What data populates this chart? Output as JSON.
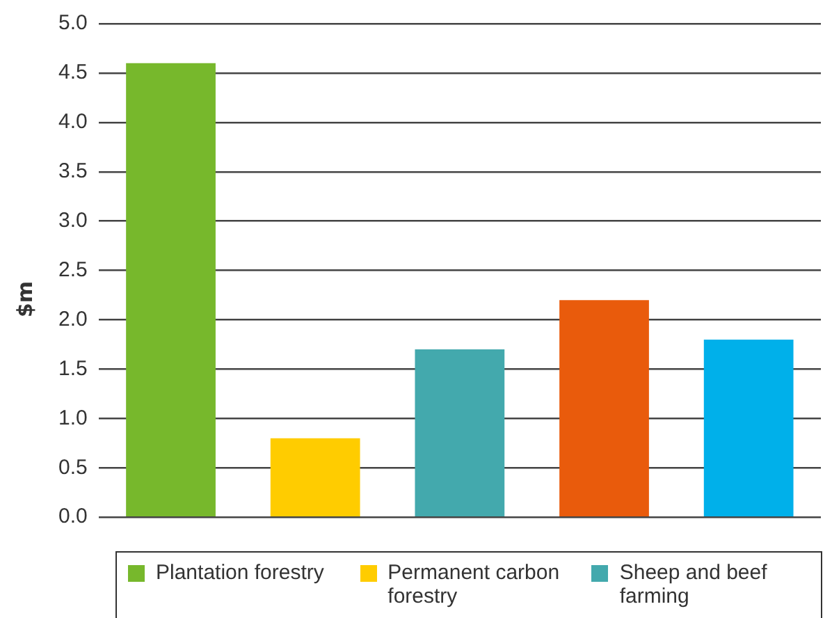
{
  "chart_data": {
    "type": "bar",
    "ylabel": "$m",
    "categories": [
      null,
      null,
      null,
      null,
      null
    ],
    "series": [
      {
        "name": "Plantation forestry",
        "color": "#77b82c",
        "values": [
          4.6,
          null,
          null,
          null,
          null
        ]
      },
      {
        "name": "Permanent carbon forestry",
        "color": "#ffcc00",
        "values": [
          null,
          0.8,
          null,
          null,
          null
        ]
      },
      {
        "name": "Sheep and beef farming",
        "color": "#43a9ad",
        "values": [
          null,
          null,
          1.7,
          null,
          null
        ]
      },
      {
        "color": "#e95b0c",
        "values": [
          null,
          null,
          null,
          2.2,
          null
        ]
      },
      {
        "color": "#00b0ea",
        "values": [
          null,
          null,
          null,
          null,
          1.8
        ]
      }
    ],
    "ylim": [
      0,
      5
    ],
    "yticks": [
      {
        "value": 0,
        "label": "0.0"
      },
      {
        "value": 0.5,
        "label": "0.5"
      },
      {
        "value": 1,
        "label": "1.0"
      },
      {
        "value": 1.5,
        "label": "1.5"
      },
      {
        "value": 2,
        "label": "2.0"
      },
      {
        "value": 2.5,
        "label": "2.5"
      },
      {
        "value": 3,
        "label": "3.0"
      },
      {
        "value": 3.5,
        "label": "3.5"
      },
      {
        "value": 4,
        "label": "4.0"
      },
      {
        "value": 4.5,
        "label": "4.5"
      },
      {
        "value": 5,
        "label": "5.0"
      }
    ],
    "grid": "y",
    "legend": "bottom"
  }
}
